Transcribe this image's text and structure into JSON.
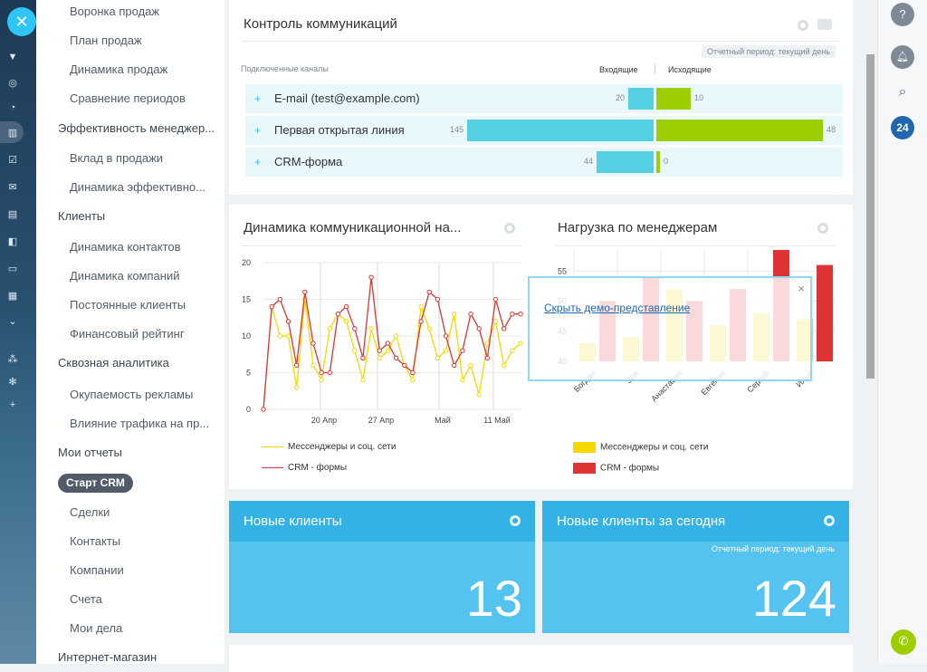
{
  "menu": {
    "items": [
      {
        "label": "Воронка продаж",
        "level": "sub"
      },
      {
        "label": "План продаж",
        "level": "sub"
      },
      {
        "label": "Динамика продаж",
        "level": "sub"
      },
      {
        "label": "Сравнение периодов",
        "level": "sub"
      },
      {
        "label": "Эффективность менеджер...",
        "level": "sec"
      },
      {
        "label": "Вклад в продажи",
        "level": "sub"
      },
      {
        "label": "Динамика эффективно...",
        "level": "sub"
      },
      {
        "label": "Клиенты",
        "level": "sec"
      },
      {
        "label": "Динамика контактов",
        "level": "sub"
      },
      {
        "label": "Динамика компаний",
        "level": "sub"
      },
      {
        "label": "Постоянные клиенты",
        "level": "sub"
      },
      {
        "label": "Финансовый рейтинг",
        "level": "sub"
      },
      {
        "label": "Сквозная аналитика",
        "level": "sec"
      },
      {
        "label": "Окупаемость рекламы",
        "level": "sub"
      },
      {
        "label": "Влияние трафика на пр...",
        "level": "sub"
      },
      {
        "label": "Мои отчеты",
        "level": "sec"
      },
      {
        "label": "Сделки",
        "level": "sub"
      },
      {
        "label": "Контакты",
        "level": "sub"
      },
      {
        "label": "Компании",
        "level": "sub"
      },
      {
        "label": "Счета",
        "level": "sub"
      },
      {
        "label": "Мои дела",
        "level": "sub"
      },
      {
        "label": "Интернет-магазин",
        "level": "sec"
      }
    ],
    "active_pill": "Старт CRM"
  },
  "comm": {
    "title": "Контроль коммуникаций",
    "period": "Отчетный период: текущий день",
    "col_channels": "Подключенные каналы",
    "col_in": "Входящие",
    "col_out": "Исходящие",
    "rows": [
      {
        "name": "E-mail (test@example.com)",
        "in": 20,
        "out": 10
      },
      {
        "name": "Первая открытая линия",
        "in": 145,
        "out": 48
      },
      {
        "name": "CRM-форма",
        "in": 44,
        "out": 0
      }
    ]
  },
  "chart_data": [
    {
      "type": "line",
      "title": "Динамика коммуникационной на...",
      "ylim": [
        0,
        20
      ],
      "yticks": [
        0,
        5,
        10,
        15,
        20
      ],
      "xticks": [
        "20 Апр",
        "27 Апр",
        "Май",
        "11 Май"
      ],
      "series": [
        {
          "name": "Мессенджеры и соц. сети",
          "color": "#f5d800",
          "values": [
            0,
            14,
            10,
            10,
            3,
            15,
            6,
            4,
            11,
            13,
            12,
            8,
            4,
            11,
            7,
            8,
            10,
            6,
            4,
            14,
            11,
            7,
            8,
            13,
            4,
            6,
            2,
            9,
            12,
            6,
            8,
            9
          ]
        },
        {
          "name": "CRM - формы",
          "color": "#e03333",
          "values": [
            0,
            14,
            15,
            12,
            6,
            16,
            9,
            5,
            5,
            13,
            14,
            11,
            7,
            18,
            8,
            9,
            7,
            6,
            5,
            12,
            16,
            15,
            10,
            6,
            8,
            13,
            11,
            7,
            15,
            11,
            13,
            13
          ]
        }
      ]
    },
    {
      "type": "bar",
      "title": "Нагрузка по менеджерам",
      "categories": [
        "Богдан",
        "Зоя",
        "Анастасия",
        "Евгения",
        "Сергей",
        "Илья"
      ],
      "ylim": [
        40,
        60
      ],
      "yticks": [
        40,
        45,
        50,
        55,
        60
      ],
      "series": [
        {
          "name": "Мессенджеры и соц. сети",
          "color": "#f5d800",
          "values": [
            43,
            44,
            52,
            46,
            48,
            47
          ]
        },
        {
          "name": "CRM - формы",
          "color": "#e03333",
          "values": [
            50,
            54,
            50,
            52,
            59,
            56
          ]
        }
      ]
    }
  ],
  "demo": {
    "link": "Скрыть демо-представление",
    "close": "×"
  },
  "tiles": [
    {
      "title": "Новые клиенты",
      "value": "13",
      "period": ""
    },
    {
      "title": "Новые клиенты за сегодня",
      "value": "124",
      "period": "Отчетный период: текущий день"
    }
  ],
  "right": {
    "help": "?",
    "counter": "24"
  }
}
